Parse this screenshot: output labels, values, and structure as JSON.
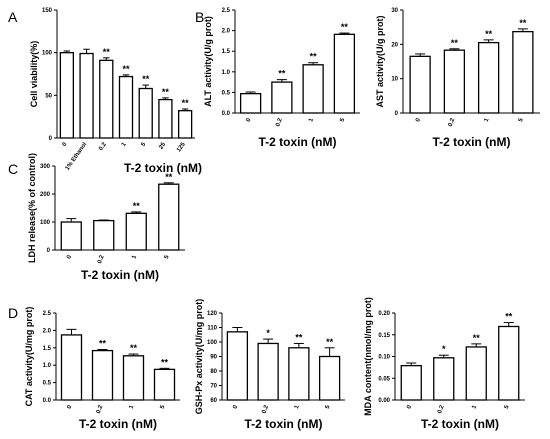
{
  "chart_data": [
    {
      "type": "bar",
      "panel_label": "A",
      "ylabel": "Cell viability(%)",
      "xlabel": "",
      "categories": [
        "0",
        "1% Ethanol",
        "0.2",
        "1",
        "5",
        "25",
        "125"
      ],
      "values": [
        100,
        99,
        91,
        72,
        58,
        45,
        32
      ],
      "errors": [
        2,
        5,
        3,
        2,
        4,
        2,
        2
      ],
      "significance": [
        "",
        "",
        "**",
        "**",
        "**",
        "**",
        "**"
      ],
      "ylim": [
        0,
        150
      ],
      "yticks": [
        "0",
        "50",
        "100",
        "150"
      ]
    },
    {
      "type": "bar",
      "panel_label": "B",
      "ylabel": "ALT activity(U/g prot)",
      "xlabel": "T-2 toxin (nM)",
      "categories": [
        "0",
        "0.2",
        "1",
        "5"
      ],
      "values": [
        0.47,
        0.75,
        1.17,
        1.91
      ],
      "errors": [
        0.04,
        0.06,
        0.05,
        0.03
      ],
      "significance": [
        "",
        "**",
        "**",
        "**"
      ],
      "ylim": [
        0,
        2.5
      ],
      "yticks": [
        "0.0",
        "0.5",
        "1.0",
        "1.5",
        "2.0",
        "2.5"
      ]
    },
    {
      "type": "bar",
      "panel_label": "",
      "ylabel": "AST activity(U/g prot)",
      "xlabel": "T-2 toxin (nM)",
      "categories": [
        "0",
        "0.2",
        "1",
        "5"
      ],
      "values": [
        16.5,
        18.3,
        20.5,
        23.7
      ],
      "errors": [
        0.7,
        0.4,
        0.8,
        0.8
      ],
      "significance": [
        "",
        "**",
        "**",
        "**"
      ],
      "ylim": [
        0,
        30
      ],
      "yticks": [
        "0",
        "10",
        "20",
        "30"
      ]
    },
    {
      "type": "bar",
      "panel_label": "C",
      "ylabel": "LDH release(% of control)",
      "xlabel": "T-2 toxin (nM)",
      "categories": [
        "0",
        "0.2",
        "1",
        "5"
      ],
      "values": [
        100,
        105,
        131,
        235
      ],
      "errors": [
        12,
        2,
        5,
        5
      ],
      "significance": [
        "",
        "",
        "**",
        "**"
      ],
      "ylim": [
        0,
        300
      ],
      "yticks": [
        "0",
        "100",
        "200",
        "300"
      ]
    },
    {
      "type": "bar",
      "panel_label": "D",
      "ylabel": "CAT activity(U/mg prot)",
      "xlabel": "T-2 toxin (nM)",
      "categories": [
        "0",
        "0.2",
        "1",
        "5"
      ],
      "values": [
        1.87,
        1.42,
        1.27,
        0.88
      ],
      "errors": [
        0.16,
        0.03,
        0.05,
        0.03
      ],
      "significance": [
        "",
        "**",
        "**",
        "**"
      ],
      "ylim": [
        0,
        2.5
      ],
      "yticks": [
        "0.0",
        "0.5",
        "1.0",
        "1.5",
        "2.0",
        "2.5"
      ]
    },
    {
      "type": "bar",
      "panel_label": "",
      "ylabel": "GSH-Px activity(U/mg prot)",
      "xlabel": "T-2 toxin (nM)",
      "categories": [
        "0",
        "0.2",
        "1",
        "5"
      ],
      "values": [
        107,
        99,
        96,
        90
      ],
      "errors": [
        3,
        3,
        3,
        6
      ],
      "significance": [
        "",
        "*",
        "**",
        "**"
      ],
      "ylim": [
        60,
        120
      ],
      "yticks": [
        "60",
        "70",
        "80",
        "90",
        "100",
        "110",
        "120"
      ]
    },
    {
      "type": "bar",
      "panel_label": "",
      "ylabel": "MDA content(nmol/mg prot)",
      "xlabel": "T-2 toxin (nM)",
      "categories": [
        "0",
        "0.2",
        "1",
        "5"
      ],
      "values": [
        0.079,
        0.097,
        0.122,
        0.169
      ],
      "errors": [
        0.006,
        0.006,
        0.007,
        0.009
      ],
      "significance": [
        "",
        "*",
        "**",
        "**"
      ],
      "ylim": [
        0,
        0.2
      ],
      "yticks": [
        "0.00",
        "0.05",
        "0.10",
        "0.15",
        "0.20"
      ]
    }
  ],
  "shared_xlabel_A": "T-2 toxin (nM)"
}
